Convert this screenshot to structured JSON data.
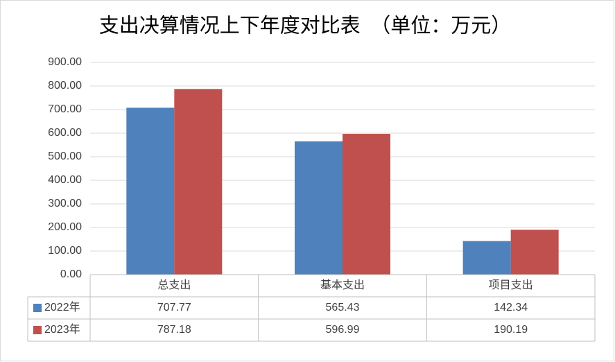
{
  "chart_data": {
    "type": "bar",
    "title": "支出决算情况上下年度对比表　（单位：万元）",
    "categories": [
      "总支出",
      "基本支出",
      "项目支出"
    ],
    "series": [
      {
        "name": "2022年",
        "color": "#4f81bd",
        "values": [
          707.77,
          565.43,
          142.34
        ]
      },
      {
        "name": "2023年",
        "color": "#c0504d",
        "values": [
          787.18,
          596.99,
          190.19
        ]
      }
    ],
    "ylim": [
      0,
      900
    ],
    "yticks": [
      {
        "value": 0,
        "label": "0.00"
      },
      {
        "value": 100,
        "label": "100.00"
      },
      {
        "value": 200,
        "label": "200.00"
      },
      {
        "value": 300,
        "label": "300.00"
      },
      {
        "value": 400,
        "label": "400.00"
      },
      {
        "value": 500,
        "label": "500.00"
      },
      {
        "value": 600,
        "label": "600.00"
      },
      {
        "value": 700,
        "label": "700.00"
      },
      {
        "value": 800,
        "label": "800.00"
      },
      {
        "value": 900,
        "label": "900.00"
      }
    ],
    "grid": true,
    "data_table": true
  }
}
